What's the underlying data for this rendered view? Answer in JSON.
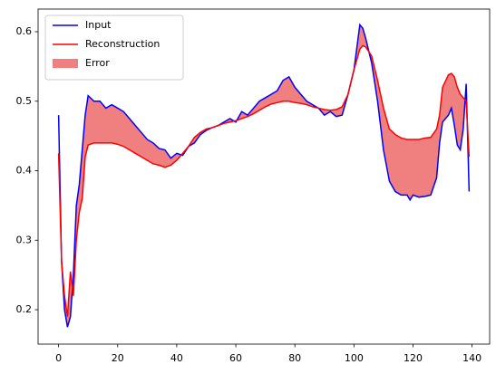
{
  "chart_data": {
    "type": "line",
    "x": [
      0,
      1,
      2,
      3,
      4,
      5,
      6,
      7,
      8,
      9,
      10,
      12,
      14,
      16,
      18,
      20,
      22,
      24,
      26,
      28,
      30,
      32,
      34,
      36,
      38,
      40,
      42,
      44,
      46,
      48,
      50,
      52,
      54,
      56,
      58,
      60,
      62,
      64,
      66,
      68,
      70,
      72,
      74,
      76,
      78,
      80,
      82,
      84,
      86,
      88,
      90,
      92,
      94,
      96,
      98,
      100,
      102,
      103,
      104,
      106,
      108,
      110,
      112,
      114,
      116,
      118,
      119,
      120,
      122,
      124,
      126,
      128,
      129,
      130,
      132,
      133,
      134,
      135,
      136,
      137,
      138,
      139
    ],
    "series": [
      {
        "name": "Input",
        "color": "#0000ff",
        "values": [
          0.48,
          0.27,
          0.2,
          0.175,
          0.19,
          0.25,
          0.35,
          0.38,
          0.43,
          0.48,
          0.508,
          0.5,
          0.5,
          0.49,
          0.495,
          0.49,
          0.485,
          0.475,
          0.465,
          0.455,
          0.445,
          0.44,
          0.432,
          0.43,
          0.418,
          0.425,
          0.422,
          0.435,
          0.44,
          0.452,
          0.458,
          0.462,
          0.465,
          0.47,
          0.475,
          0.47,
          0.485,
          0.48,
          0.49,
          0.5,
          0.505,
          0.51,
          0.515,
          0.53,
          0.535,
          0.52,
          0.51,
          0.5,
          0.495,
          0.49,
          0.48,
          0.485,
          0.478,
          0.48,
          0.51,
          0.545,
          0.61,
          0.605,
          0.59,
          0.555,
          0.5,
          0.43,
          0.385,
          0.37,
          0.365,
          0.365,
          0.358,
          0.365,
          0.362,
          0.363,
          0.365,
          0.39,
          0.44,
          0.47,
          0.48,
          0.49,
          0.465,
          0.437,
          0.43,
          0.46,
          0.525,
          0.37
        ]
      },
      {
        "name": "Reconstruction",
        "color": "#ff0000",
        "values": [
          0.425,
          0.27,
          0.22,
          0.19,
          0.255,
          0.22,
          0.3,
          0.34,
          0.36,
          0.42,
          0.437,
          0.44,
          0.44,
          0.44,
          0.44,
          0.438,
          0.435,
          0.43,
          0.425,
          0.42,
          0.415,
          0.41,
          0.408,
          0.405,
          0.408,
          0.415,
          0.425,
          0.435,
          0.448,
          0.455,
          0.46,
          0.462,
          0.465,
          0.468,
          0.47,
          0.472,
          0.475,
          0.478,
          0.482,
          0.487,
          0.492,
          0.496,
          0.498,
          0.5,
          0.5,
          0.498,
          0.497,
          0.495,
          0.492,
          0.49,
          0.488,
          0.487,
          0.488,
          0.492,
          0.51,
          0.545,
          0.575,
          0.58,
          0.578,
          0.565,
          0.53,
          0.49,
          0.46,
          0.452,
          0.447,
          0.445,
          0.445,
          0.445,
          0.445,
          0.447,
          0.448,
          0.46,
          0.48,
          0.52,
          0.538,
          0.54,
          0.535,
          0.52,
          0.51,
          0.505,
          0.5,
          0.42
        ]
      }
    ],
    "fill": {
      "name": "Error",
      "color": "#f08080"
    },
    "xlim": [
      -6.95,
      145.95
    ],
    "xticks": [
      0,
      20,
      40,
      60,
      80,
      100,
      120,
      140
    ],
    "ylim": [
      0.1505,
      0.6326
    ],
    "yticks": [
      0.2,
      0.3,
      0.4,
      0.5,
      0.6
    ],
    "legend": "upper left"
  }
}
